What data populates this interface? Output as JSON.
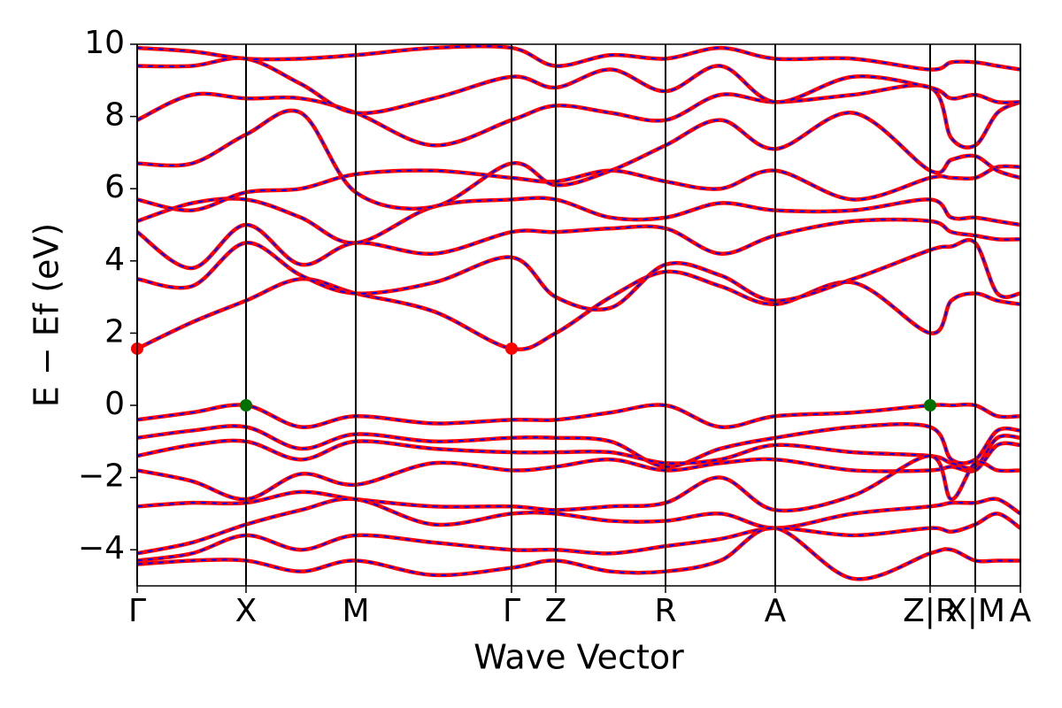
{
  "chart_data": {
    "type": "band_structure",
    "xlabel": "Wave Vector",
    "ylabel": "E − Ef (eV)",
    "xlim": [
      0,
      9.98
    ],
    "ylim": [
      -5,
      10
    ],
    "xticks": [
      {
        "value": 0,
        "label": "Γ"
      },
      {
        "value": 1.23,
        "label": "X"
      },
      {
        "value": 2.47,
        "label": "M"
      },
      {
        "value": 4.23,
        "label": "Γ"
      },
      {
        "value": 4.73,
        "label": "Z"
      },
      {
        "value": 5.97,
        "label": "R"
      },
      {
        "value": 7.21,
        "label": "A"
      },
      {
        "value": 8.96,
        "label": "Z|R"
      },
      {
        "value": 9.47,
        "label": "X|M"
      },
      {
        "value": 9.98,
        "label": "A"
      }
    ],
    "yticks": [
      {
        "value": -4,
        "label": "−4"
      },
      {
        "value": -2,
        "label": "−2"
      },
      0,
      2,
      4,
      6,
      8,
      10
    ],
    "line_color": "#ff0000",
    "overlay_color": "#0000ff",
    "x": [
      0,
      0.62,
      1.23,
      1.85,
      2.47,
      3.35,
      4.23,
      4.73,
      5.35,
      5.97,
      6.59,
      7.21,
      8.09,
      8.96,
      9.2,
      9.47,
      9.72,
      9.98
    ],
    "bands": [
      {
        "values": [
          -0.4,
          -0.2,
          0,
          -0.6,
          -0.3,
          -0.5,
          -0.4,
          -0.4,
          -0.2,
          0,
          -0.6,
          -0.3,
          -0.2,
          0,
          0,
          0,
          -0.3,
          -0.3
        ]
      },
      {
        "values": [
          -0.9,
          -0.7,
          -0.6,
          -1.2,
          -0.8,
          -1.0,
          -0.9,
          -0.9,
          -1.0,
          -1.7,
          -1.2,
          -0.9,
          -0.6,
          -0.6,
          -1.5,
          -1.5,
          -0.7,
          -0.7
        ]
      },
      {
        "values": [
          -1.4,
          -1.1,
          -1.0,
          -1.5,
          -1.0,
          -1.2,
          -1.3,
          -1.3,
          -1.3,
          -1.6,
          -1.5,
          -1.1,
          -1.3,
          -1.4,
          -1.6,
          -1.7,
          -0.9,
          -0.9
        ]
      },
      {
        "values": [
          -1.8,
          -2.1,
          -2.6,
          -1.9,
          -2.2,
          -1.6,
          -1.8,
          -1.7,
          -1.5,
          -1.8,
          -1.6,
          -1.5,
          -1.8,
          -1.8,
          -1.7,
          -1.8,
          -1.1,
          -1.1
        ]
      },
      {
        "values": [
          -2.8,
          -2.7,
          -2.7,
          -2.4,
          -2.6,
          -2.8,
          -2.8,
          -2.9,
          -2.8,
          -2.7,
          -2.0,
          -2.9,
          -2.5,
          -1.4,
          -2.6,
          -1.6,
          -1.8,
          -1.8
        ]
      },
      {
        "values": [
          -4.1,
          -3.8,
          -3.3,
          -2.9,
          -2.6,
          -3.3,
          -3.0,
          -3.0,
          -3.2,
          -3.2,
          -3.0,
          -3.4,
          -3.0,
          -2.8,
          -2.7,
          -2.7,
          -2.6,
          -3.0
        ]
      },
      {
        "values": [
          -4.3,
          -4.1,
          -3.6,
          -4.0,
          -3.6,
          -3.8,
          -4.0,
          -4.0,
          -4.1,
          -3.9,
          -3.7,
          -3.4,
          -3.6,
          -3.4,
          -3.5,
          -3.3,
          -3.0,
          -3.4
        ]
      },
      {
        "values": [
          -4.4,
          -4.3,
          -4.3,
          -4.6,
          -4.3,
          -4.7,
          -4.5,
          -4.3,
          -4.6,
          -4.6,
          -4.3,
          -3.4,
          -4.8,
          -4.1,
          -4.0,
          -4.3,
          -4.3,
          -4.3
        ]
      },
      {
        "values": [
          1.57,
          2.3,
          2.9,
          3.5,
          3.1,
          2.6,
          1.57,
          2.0,
          3.0,
          3.7,
          3.3,
          2.8,
          3.4,
          2.0,
          2.9,
          3.1,
          2.9,
          2.8
        ]
      },
      {
        "values": [
          3.5,
          3.3,
          4.5,
          3.6,
          3.1,
          3.4,
          4.1,
          3.0,
          2.7,
          3.9,
          3.6,
          2.9,
          3.5,
          4.3,
          4.4,
          4.5,
          3.1,
          3.1
        ]
      },
      {
        "values": [
          4.8,
          3.8,
          5.0,
          3.9,
          4.5,
          4.2,
          4.8,
          4.8,
          4.9,
          4.9,
          4.2,
          4.7,
          5.1,
          5.1,
          4.8,
          4.7,
          4.6,
          4.6
        ]
      },
      {
        "values": [
          5.1,
          5.6,
          5.7,
          5.2,
          4.5,
          5.5,
          5.7,
          5.7,
          5.2,
          5.2,
          5.6,
          5.4,
          5.4,
          5.7,
          5.2,
          5.2,
          5.1,
          5.0
        ]
      },
      {
        "values": [
          5.7,
          5.4,
          5.9,
          6.0,
          6.4,
          6.5,
          6.3,
          6.2,
          6.5,
          6.2,
          6.0,
          6.5,
          5.7,
          6.3,
          6.3,
          6.3,
          6.6,
          6.6
        ]
      },
      {
        "values": [
          6.7,
          6.7,
          7.5,
          8.1,
          5.9,
          5.5,
          6.7,
          6.1,
          6.5,
          7.2,
          7.9,
          7.1,
          8.1,
          6.5,
          6.8,
          6.9,
          6.5,
          6.3
        ]
      },
      {
        "values": [
          7.9,
          8.6,
          8.5,
          8.5,
          8.1,
          7.2,
          7.9,
          8.3,
          8.1,
          7.9,
          8.6,
          8.4,
          8.6,
          8.8,
          7.4,
          7.2,
          8.1,
          8.4
        ]
      },
      {
        "values": [
          9.4,
          9.4,
          9.6,
          8.9,
          8.1,
          8.5,
          9.1,
          8.8,
          9.3,
          8.7,
          9.4,
          8.4,
          9.1,
          8.8,
          8.5,
          8.6,
          8.4,
          8.4
        ]
      },
      {
        "values": [
          9.9,
          9.8,
          9.6,
          9.6,
          9.7,
          9.9,
          9.9,
          9.4,
          9.7,
          9.6,
          9.9,
          9.6,
          9.6,
          9.3,
          9.5,
          9.5,
          9.4,
          9.3
        ]
      }
    ],
    "markers": [
      {
        "x": 0,
        "y": 1.57,
        "color": "#ff0000"
      },
      {
        "x": 4.23,
        "y": 1.57,
        "color": "#ff0000"
      },
      {
        "x": 1.23,
        "y": 0,
        "color": "#007000"
      },
      {
        "x": 8.96,
        "y": 0,
        "color": "#007000"
      }
    ]
  }
}
